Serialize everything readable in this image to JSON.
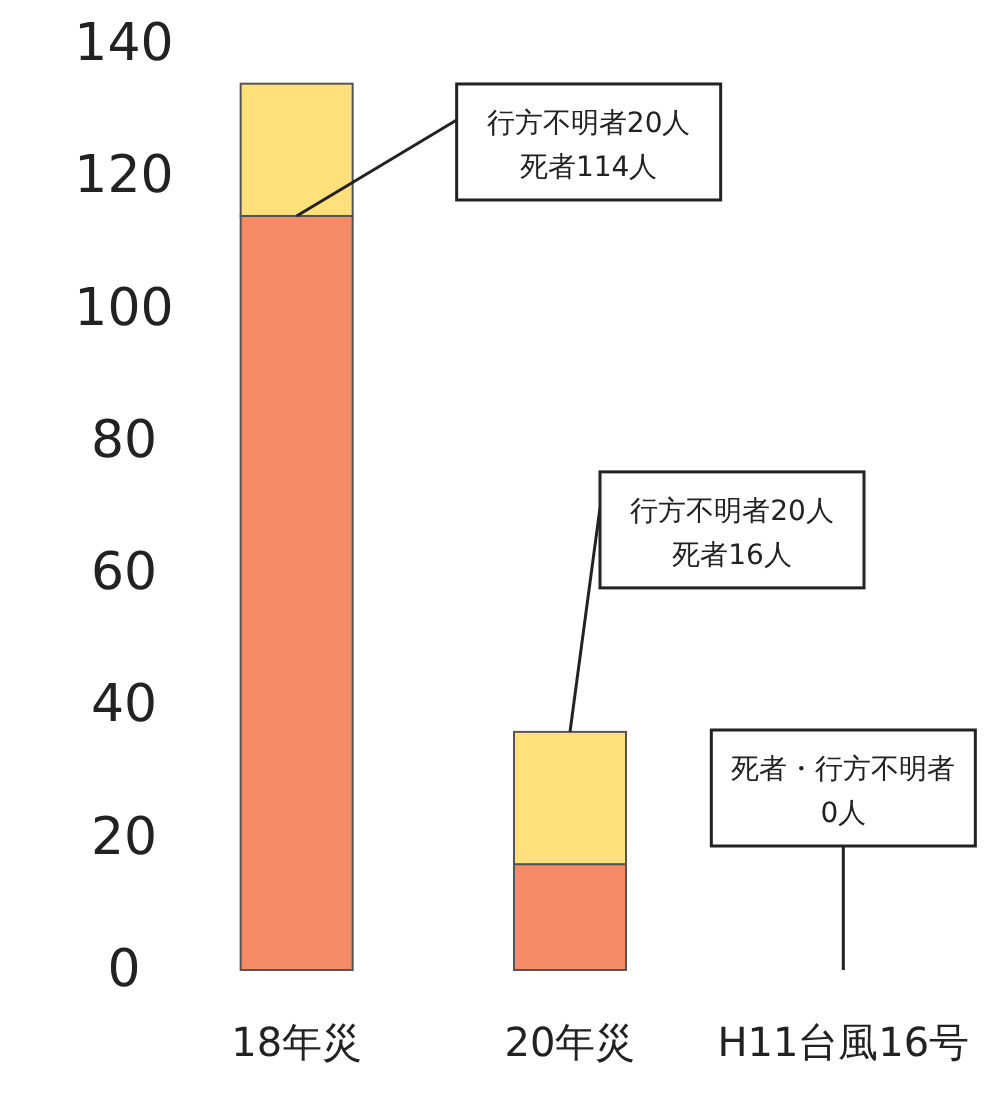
{
  "chart_data": {
    "type": "bar",
    "stacked": true,
    "categories": [
      "18年災",
      "20年災",
      "H11台風16号"
    ],
    "series": [
      {
        "color": "#f58a66",
        "values": [
          114,
          16,
          0
        ]
      },
      {
        "color": "#ffe07a",
        "values": [
          20,
          20,
          0
        ]
      }
    ],
    "ylim": [
      0,
      140
    ],
    "yticks": [
      0,
      20,
      40,
      60,
      80,
      100,
      120,
      140
    ],
    "grid": false,
    "annotations": [
      {
        "text": "行方不明者20人",
        "x": "18年災",
        "y": 114
      },
      "死者114人",
      {
        "text": "行方不明者20人",
        "x": "20年災",
        "y": 36
      },
      "死者16人",
      {
        "text": "0人",
        "x": "H11台風16号",
        "y": 0
      },
      "死者・行方不明者"
    ]
  }
}
